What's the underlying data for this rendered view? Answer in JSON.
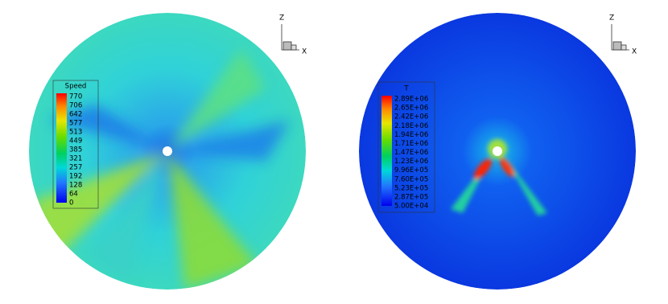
{
  "panels": [
    {
      "legend": {
        "title": "Speed",
        "labels": [
          "770",
          "706",
          "642",
          "577",
          "513",
          "449",
          "385",
          "321",
          "257",
          "192",
          "128",
          "64",
          "0"
        ]
      },
      "axes": {
        "z": "Z",
        "x": "X"
      }
    },
    {
      "legend": {
        "title": "T",
        "labels": [
          "2.89E+06",
          "2.65E+06",
          "2.42E+06",
          "2.18E+06",
          "1.94E+06",
          "1.71E+06",
          "1.47E+06",
          "1.23E+06",
          "9.96E+05",
          "7.60E+05",
          "5.23E+05",
          "2.87E+05",
          "5.00E+04"
        ]
      },
      "axes": {
        "z": "Z",
        "x": "X"
      }
    }
  ]
}
